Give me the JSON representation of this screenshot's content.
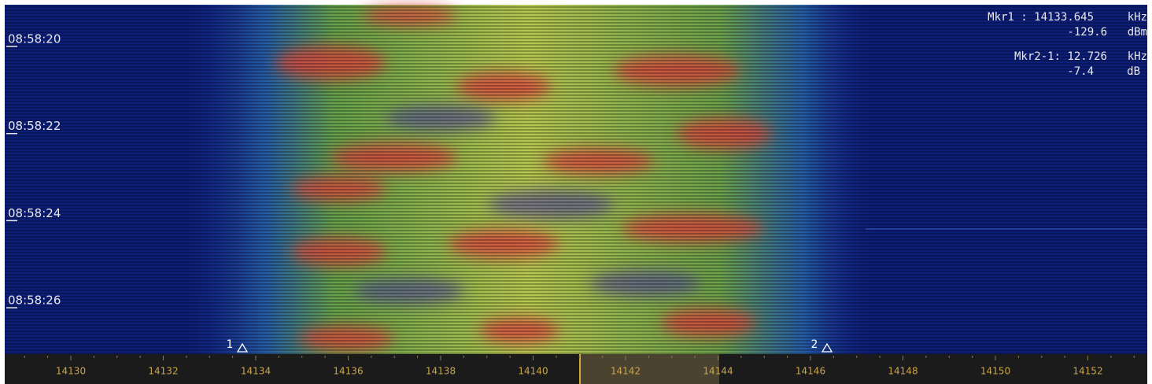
{
  "time_labels": [
    "08:58:20",
    "08:58:22",
    "08:58:24",
    "08:58:26"
  ],
  "readout": {
    "mkr1": {
      "label": "Mkr1 : 14133.645",
      "unit": "kHz",
      "level": "-129.6",
      "level_unit": "dBm"
    },
    "delta": {
      "label": "Mkr2-1: 12.726",
      "unit": "kHz",
      "level": "-7.4",
      "level_unit": "dB"
    }
  },
  "marker_tags": [
    "1",
    "2"
  ],
  "frequency_ticks": [
    14130,
    14132,
    14134,
    14136,
    14138,
    14140,
    14142,
    14144,
    14146,
    14148,
    14150,
    14152
  ]
}
